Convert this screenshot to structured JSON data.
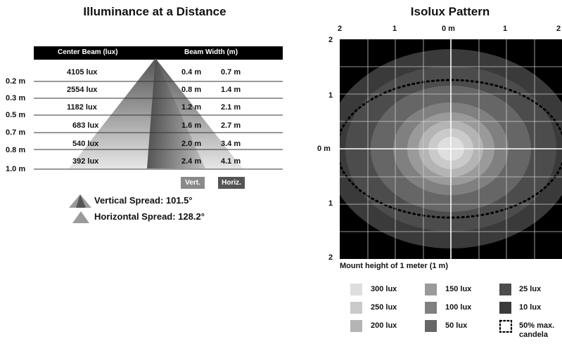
{
  "left": {
    "title": "Illuminance at a Distance",
    "header": {
      "center_beam": "Center Beam (lux)",
      "beam_width": "Beam Width (m)"
    },
    "rows": [
      {
        "distance": "0.2 m",
        "lux": "4105 lux",
        "vert": "0.4 m",
        "horiz": "0.7 m"
      },
      {
        "distance": "0.3 m",
        "lux": "2554 lux",
        "vert": "0.8 m",
        "horiz": "1.4 m"
      },
      {
        "distance": "0.5 m",
        "lux": "1182 lux",
        "vert": "1.2 m",
        "horiz": "2.1 m"
      },
      {
        "distance": "0.7 m",
        "lux": "683 lux",
        "vert": "1.6 m",
        "horiz": "2.7 m"
      },
      {
        "distance": "0.8 m",
        "lux": "540 lux",
        "vert": "2.0 m",
        "horiz": "3.4 m"
      },
      {
        "distance": "1.0 m",
        "lux": "392 lux",
        "vert": "2.4 m",
        "horiz": "4.1 m"
      }
    ],
    "tags": {
      "vert": "Vert.",
      "horiz": "Horiz."
    },
    "legend": {
      "vertical": "Vertical Spread: 101.5°",
      "horizontal": "Horizontal Spread: 128.2°"
    }
  },
  "right": {
    "title": "Isolux Pattern",
    "x_ticks": [
      "2",
      "1",
      "0 m",
      "1",
      "2"
    ],
    "y_ticks": [
      "2",
      "1",
      "0 m",
      "1",
      "2"
    ],
    "mount_height": "Mount height of 1 meter (1 m)",
    "contours": [
      {
        "label": "10 lux",
        "color": "#3a3a3a"
      },
      {
        "label": "25 lux",
        "color": "#4c4c4c"
      },
      {
        "label": "50 lux",
        "color": "#666666"
      },
      {
        "label": "100 lux",
        "color": "#808080"
      },
      {
        "label": "150 lux",
        "color": "#9a9a9a"
      },
      {
        "label": "200 lux",
        "color": "#b4b4b4"
      },
      {
        "label": "250 lux",
        "color": "#cacaca"
      },
      {
        "label": "300 lux",
        "color": "#dedede"
      }
    ],
    "legend": {
      "c300": "300 lux",
      "c250": "250 lux",
      "c200": "200 lux",
      "c150": "150 lux",
      "c100": "100 lux",
      "c50": "50 lux",
      "c25": "25 lux",
      "c10": "10 lux",
      "candela_line1": "50% max.",
      "candela_line2": "candela"
    },
    "colors": {
      "bg": "#000000",
      "c300": "#dedede",
      "c250": "#cacaca",
      "c200": "#b4b4b4",
      "c150": "#9a9a9a",
      "c100": "#808080",
      "c50": "#666666",
      "c25": "#4c4c4c",
      "c10": "#3a3a3a"
    }
  }
}
